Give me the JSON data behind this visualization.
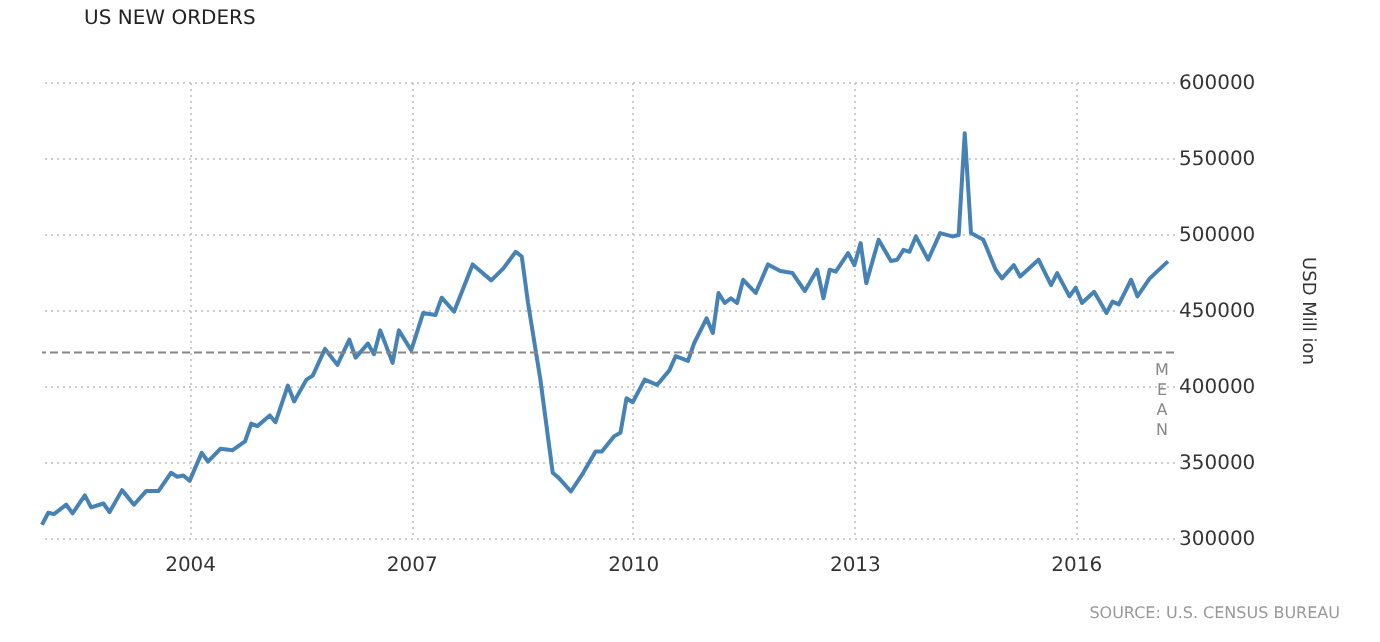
{
  "chart_data": {
    "type": "line",
    "title": "US NEW ORDERS",
    "ylabel": "USD Mill ion",
    "annotations": [
      "SOURCE: U.S. CENSUS BUREAU"
    ],
    "x": [
      "2002-01",
      "2002-02",
      "2002-03",
      "2002-05",
      "2002-06",
      "2002-08",
      "2002-09",
      "2002-11",
      "2002-12",
      "2003-02",
      "2003-04",
      "2003-06",
      "2003-08",
      "2003-10",
      "2003-11",
      "2003-12",
      "2004-01",
      "2004-03",
      "2004-04",
      "2004-06",
      "2004-08",
      "2004-10",
      "2004-11",
      "2004-12",
      "2005-02",
      "2005-03",
      "2005-05",
      "2005-06",
      "2005-08",
      "2005-09",
      "2005-11",
      "2006-01",
      "2006-03",
      "2006-04",
      "2006-06",
      "2006-07",
      "2006-08",
      "2006-10",
      "2006-11",
      "2007-01",
      "2007-03",
      "2007-05",
      "2007-06",
      "2007-08",
      "2007-11",
      "2008-02",
      "2008-04",
      "2008-06",
      "2008-07",
      "2008-08",
      "2008-10",
      "2008-12",
      "2009-01",
      "2009-03",
      "2009-05",
      "2009-07",
      "2009-08",
      "2009-10",
      "2009-11",
      "2009-12",
      "2010-01",
      "2010-03",
      "2010-05",
      "2010-07",
      "2010-08",
      "2010-10",
      "2010-11",
      "2011-01",
      "2011-02",
      "2011-03",
      "2011-04",
      "2011-05",
      "2011-06",
      "2011-07",
      "2011-09",
      "2011-11",
      "2012-01",
      "2012-03",
      "2012-05",
      "2012-07",
      "2012-08",
      "2012-09",
      "2012-10",
      "2012-12",
      "2013-01",
      "2013-02",
      "2013-03",
      "2013-05",
      "2013-07",
      "2013-08",
      "2013-09",
      "2013-10",
      "2013-11",
      "2014-01",
      "2014-03",
      "2014-05",
      "2014-06",
      "2014-07",
      "2014-08",
      "2014-10",
      "2014-12",
      "2015-01",
      "2015-03",
      "2015-04",
      "2015-07",
      "2015-09",
      "2015-10",
      "2015-12",
      "2016-01",
      "2016-02",
      "2016-04",
      "2016-06",
      "2016-07",
      "2016-08",
      "2016-10",
      "2016-11",
      "2017-01",
      "2017-04"
    ],
    "series": [
      {
        "color": "#4682b4",
        "values": [
          308700,
          316600,
          315700,
          321900,
          316200,
          328000,
          320100,
          322700,
          317000,
          331500,
          321900,
          331000,
          331000,
          342900,
          340300,
          341100,
          337600,
          356000,
          350300,
          358700,
          357800,
          363500,
          375300,
          373600,
          380600,
          376200,
          400300,
          389800,
          404200,
          406800,
          424400,
          413900,
          430500,
          418700,
          427900,
          420900,
          436600,
          415200,
          436600,
          423500,
          448000,
          446700,
          458100,
          448900,
          480000,
          469500,
          477400,
          488300,
          485200,
          454600,
          404200,
          342900,
          339400,
          330600,
          342900,
          356900,
          356900,
          367000,
          369200,
          391900,
          389300,
          404200,
          400700,
          410300,
          419600,
          416500,
          428300,
          444500,
          434900,
          461200,
          454600,
          457700,
          454600,
          469900,
          461200,
          480000,
          475600,
          474300,
          462500,
          476500,
          457700,
          476500,
          475200,
          487400,
          479500,
          494000,
          467700,
          496200,
          482200,
          483100,
          489600,
          488300,
          498400,
          483100,
          500600,
          498400,
          499300,
          566300,
          500600,
          496200,
          476500,
          470800,
          479500,
          472000,
          483100,
          466400,
          474300,
          459000,
          464700,
          454600,
          462000,
          448000,
          455500,
          453700,
          469900,
          459000,
          470800,
          482000
        ]
      }
    ],
    "xlim": [
      "2002-01",
      "2017-05"
    ],
    "xticks": [
      {
        "value": "2004",
        "label": "2004"
      },
      {
        "value": "2007",
        "label": "2007"
      },
      {
        "value": "2010",
        "label": "2010"
      },
      {
        "value": "2013",
        "label": "2013"
      },
      {
        "value": "2016",
        "label": "2016"
      }
    ],
    "ylim": [
      300000,
      600000
    ],
    "yticks": [
      300000,
      350000,
      400000,
      450000,
      500000,
      550000,
      600000
    ],
    "grid": true,
    "line_style": "solid",
    "marker": "none",
    "ref_lines": [
      {
        "axis": "y",
        "value": 422000,
        "label": "MEAN",
        "line_style": "dashed",
        "color": "#888888"
      }
    ]
  }
}
